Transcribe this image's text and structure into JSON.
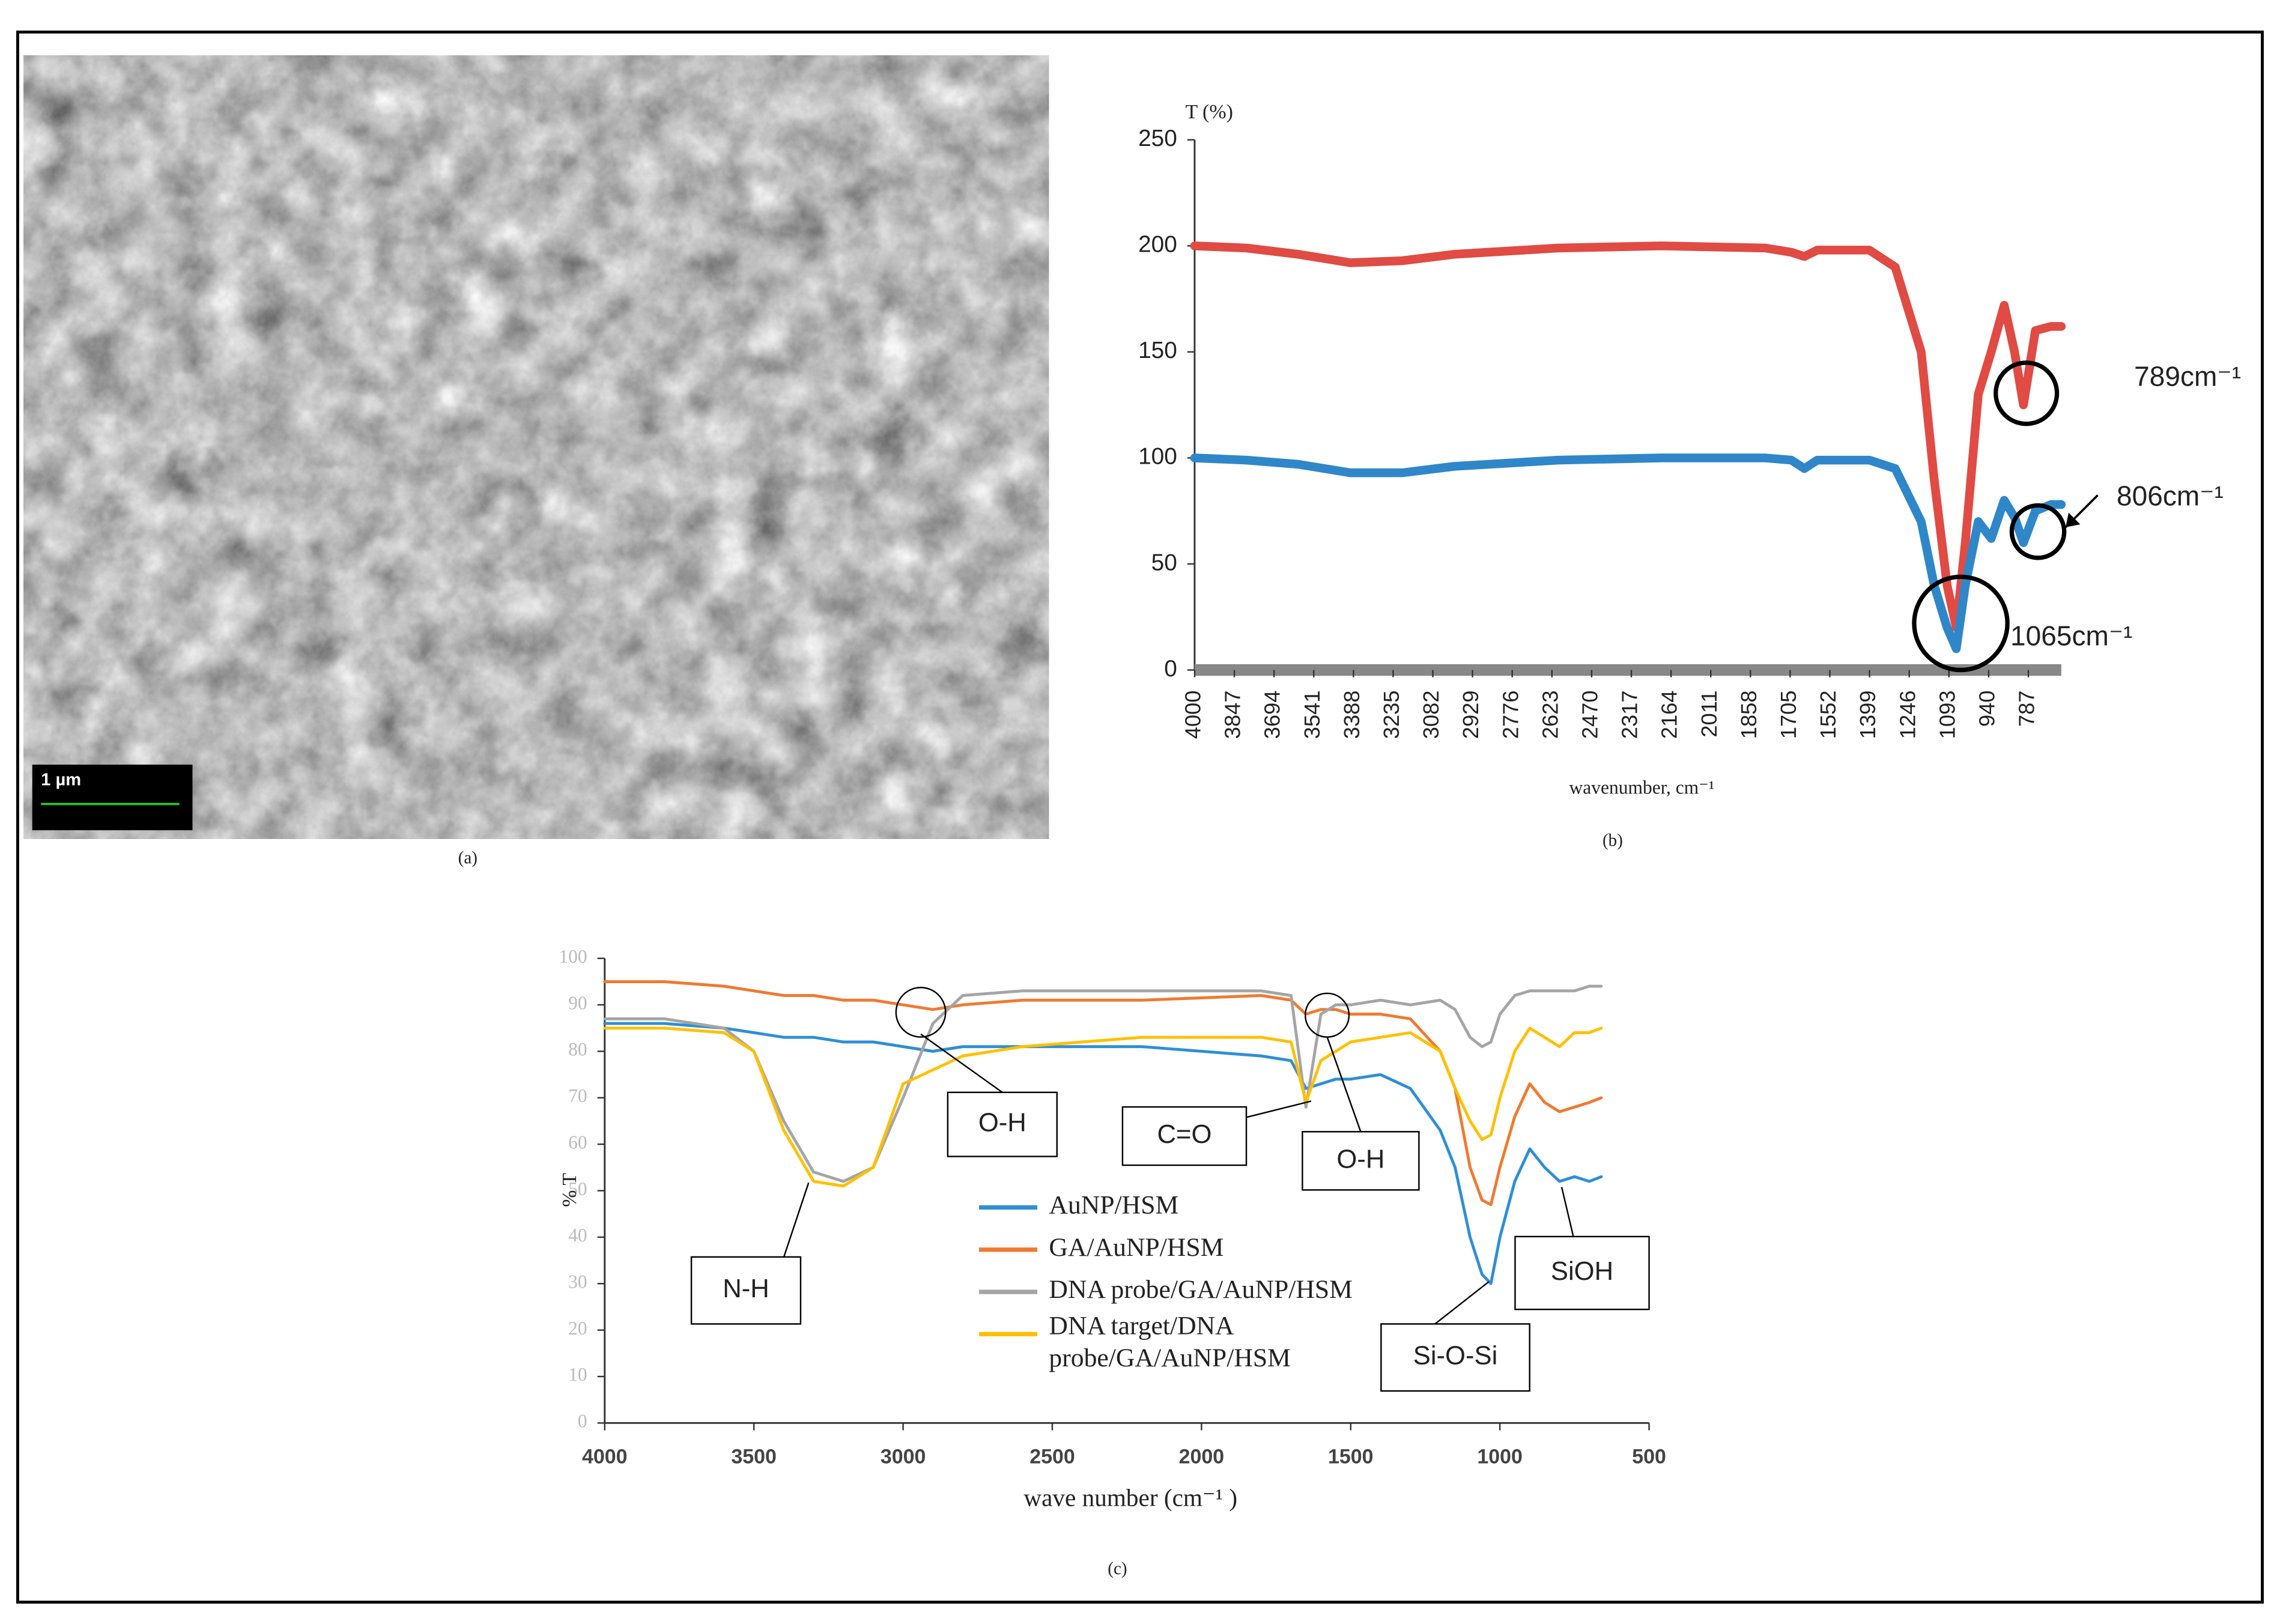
{
  "image": {
    "scale_bar": "1 µm",
    "caption": "(a)"
  },
  "chart_data": [
    {
      "type": "line",
      "caption": "(b)",
      "ylabel": "T (%)",
      "xlabel": "wavenumber, cm⁻¹",
      "xlim": [
        4000,
        660
      ],
      "ylim": [
        0,
        250
      ],
      "xticks": [
        4000,
        3847,
        3694,
        3541,
        3388,
        3235,
        3082,
        2929,
        2776,
        2623,
        2470,
        2317,
        2164,
        2011,
        1858,
        1705,
        1552,
        1399,
        1246,
        1093,
        940,
        787
      ],
      "yticks": [
        0,
        50,
        100,
        150,
        200,
        250
      ],
      "x": [
        4000,
        3800,
        3600,
        3400,
        3200,
        3000,
        2600,
        2200,
        1800,
        1700,
        1650,
        1600,
        1400,
        1300,
        1200,
        1150,
        1100,
        1065,
        1030,
        980,
        930,
        880,
        840,
        806,
        760,
        700,
        660
      ],
      "series": [
        {
          "color": "#e04b44",
          "values": [
            200,
            199,
            196,
            192,
            193,
            196,
            199,
            200,
            199,
            197,
            195,
            198,
            198,
            190,
            150,
            90,
            40,
            20,
            60,
            130,
            150,
            172,
            150,
            125,
            160,
            162,
            162
          ]
        },
        {
          "color": "#2f87c9",
          "values": [
            100,
            99,
            97,
            93,
            93,
            96,
            99,
            100,
            100,
            99,
            95,
            99,
            99,
            95,
            70,
            40,
            20,
            10,
            40,
            70,
            62,
            80,
            72,
            60,
            75,
            78,
            78
          ]
        }
      ],
      "annotations": [
        "789cm⁻¹",
        "806cm⁻¹",
        "1065cm⁻¹"
      ]
    },
    {
      "type": "line",
      "caption": "(c)",
      "ylabel": "% T",
      "xlabel": "wave number (cm⁻¹ )",
      "xlim": [
        4000,
        500
      ],
      "ylim": [
        0,
        100
      ],
      "xticks": [
        4000,
        3500,
        3000,
        2500,
        2000,
        1500,
        1000,
        500
      ],
      "yticks": [
        0,
        10,
        20,
        30,
        40,
        50,
        60,
        70,
        80,
        90,
        100
      ],
      "x": [
        4000,
        3800,
        3600,
        3500,
        3400,
        3300,
        3200,
        3100,
        3000,
        2900,
        2800,
        2600,
        2200,
        1800,
        1700,
        1650,
        1600,
        1550,
        1500,
        1400,
        1300,
        1200,
        1150,
        1100,
        1060,
        1030,
        1000,
        950,
        900,
        850,
        800,
        750,
        700,
        660
      ],
      "series": [
        {
          "name": "AuNP/HSM",
          "color": "#2e8fd6",
          "values": [
            86,
            86,
            85,
            84,
            83,
            83,
            82,
            82,
            81,
            80,
            81,
            81,
            81,
            79,
            78,
            72,
            73,
            74,
            74,
            75,
            72,
            63,
            55,
            40,
            32,
            30,
            40,
            52,
            59,
            55,
            52,
            53,
            52,
            53
          ]
        },
        {
          "name": "GA/AuNP/HSM",
          "color": "#f07a30",
          "values": [
            95,
            95,
            94,
            93,
            92,
            92,
            91,
            91,
            90,
            89,
            90,
            91,
            91,
            92,
            91,
            88,
            89,
            89,
            88,
            88,
            87,
            80,
            72,
            55,
            48,
            47,
            55,
            66,
            73,
            69,
            67,
            68,
            69,
            70
          ]
        },
        {
          "name": "DNA probe/GA/AuNP/HSM",
          "color": "#a5a5a5",
          "values": [
            87,
            87,
            85,
            80,
            65,
            54,
            52,
            55,
            70,
            86,
            92,
            93,
            93,
            93,
            92,
            68,
            88,
            90,
            90,
            91,
            90,
            91,
            89,
            83,
            81,
            82,
            88,
            92,
            93,
            93,
            93,
            93,
            94,
            94
          ]
        },
        {
          "name": "DNA target/DNA probe/GA/AuNP/HSM",
          "color": "#ffc000",
          "values": [
            85,
            85,
            84,
            80,
            63,
            52,
            51,
            55,
            73,
            76,
            79,
            81,
            83,
            83,
            82,
            69,
            78,
            80,
            82,
            83,
            84,
            80,
            72,
            65,
            61,
            62,
            70,
            80,
            85,
            83,
            81,
            84,
            84,
            85
          ]
        }
      ],
      "annotations": [
        "O-H",
        "C=O",
        "O-H",
        "N-H",
        "SiOH",
        "Si-O-Si"
      ]
    }
  ]
}
